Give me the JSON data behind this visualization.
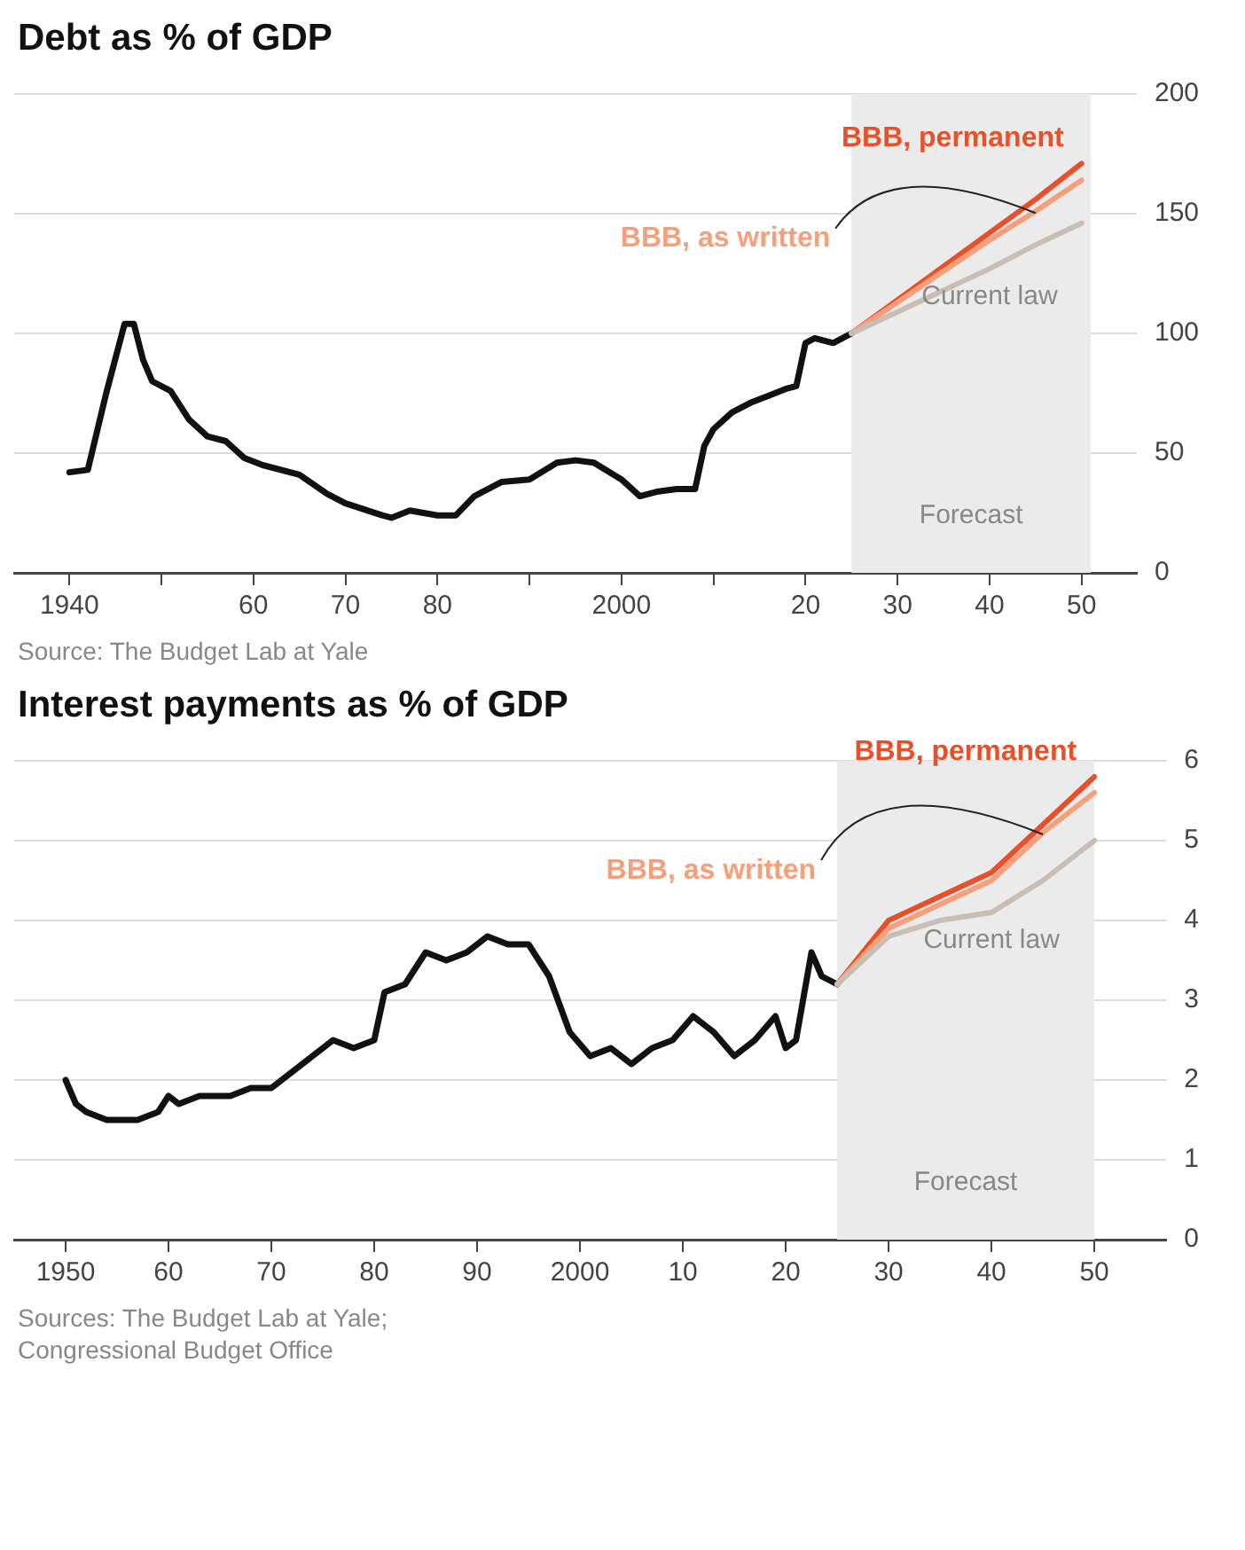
{
  "chart_data": [
    {
      "type": "line",
      "title": "Debt as % of GDP",
      "annotations": [
        "Source: The Budget Lab at Yale"
      ],
      "xlim": [
        1934,
        2056
      ],
      "xticks": [
        1940,
        {
          "value": 1950,
          "label": null
        },
        {
          "value": 1960,
          "label": "60"
        },
        {
          "value": 1970,
          "label": "70"
        },
        {
          "value": 1980,
          "label": "80"
        },
        {
          "value": 1990,
          "label": null
        },
        2000,
        {
          "value": 2010,
          "label": null
        },
        {
          "value": 2020,
          "label": "20"
        },
        {
          "value": 2030,
          "label": "30"
        },
        {
          "value": 2040,
          "label": "40"
        },
        {
          "value": 2050,
          "label": "50"
        }
      ],
      "ylim": [
        0,
        200
      ],
      "yticks": [
        0,
        50,
        100,
        150,
        200
      ],
      "grid": "y",
      "bands": [
        {
          "axis": "x",
          "from": 2025,
          "to": 2051,
          "label": "Forecast",
          "color": "#ebebeb"
        }
      ],
      "series": [
        {
          "name": "Current law",
          "color": "#c9beb3",
          "x": [
            2025,
            2030,
            2035,
            2040,
            2045,
            2050
          ],
          "values": [
            100,
            109,
            118,
            127,
            137,
            146
          ]
        },
        {
          "name": "BBB, as written",
          "color": "#f5a07a",
          "x": [
            2025,
            2030,
            2035,
            2040,
            2045,
            2050
          ],
          "values": [
            100,
            113,
            126,
            139,
            151,
            164
          ]
        },
        {
          "name": "BBB, permanent",
          "color": "#e8502a",
          "x": [
            2025,
            2030,
            2035,
            2040,
            2045,
            2050
          ],
          "values": [
            100,
            114,
            128,
            142,
            156,
            171
          ]
        },
        {
          "color": "#111111",
          "x": [
            1940,
            1942,
            1944,
            1946,
            1947,
            1948,
            1949,
            1951,
            1953,
            1955,
            1957,
            1959,
            1961,
            1965,
            1968,
            1970,
            1974,
            1975,
            1977,
            1980,
            1982,
            1984,
            1987,
            1990,
            1993,
            1995,
            1997,
            2000,
            2002,
            2004,
            2006,
            2008,
            2009,
            2010,
            2012,
            2014,
            2016,
            2018,
            2019,
            2020,
            2021,
            2023,
            2025
          ],
          "values": [
            42,
            43,
            75,
            104,
            104,
            89,
            80,
            76,
            64,
            57,
            55,
            48,
            45,
            41,
            33,
            29,
            24,
            23,
            26,
            24,
            24,
            32,
            38,
            39,
            46,
            47,
            46,
            39,
            32,
            34,
            35,
            35,
            53,
            60,
            67,
            71,
            74,
            77,
            78,
            96,
            98,
            96,
            100
          ]
        }
      ]
    },
    {
      "type": "line",
      "title": "Interest payments as % of GDP",
      "annotations": [
        "Sources: The Budget Lab at Yale; Congressional Budget Office"
      ],
      "xlim": [
        1945,
        2057
      ],
      "xticks": [
        1950,
        {
          "value": 1960,
          "label": "60"
        },
        {
          "value": 1970,
          "label": "70"
        },
        {
          "value": 1980,
          "label": "80"
        },
        {
          "value": 1990,
          "label": "90"
        },
        2000,
        {
          "value": 2010,
          "label": "10"
        },
        {
          "value": 2020,
          "label": "20"
        },
        {
          "value": 2030,
          "label": "30"
        },
        {
          "value": 2040,
          "label": "40"
        },
        {
          "value": 2050,
          "label": "50"
        }
      ],
      "ylim": [
        0,
        6
      ],
      "yticks": [
        0,
        1,
        2,
        3,
        4,
        5,
        6
      ],
      "grid": "y",
      "bands": [
        {
          "axis": "x",
          "from": 2025,
          "to": 2050,
          "label": "Forecast",
          "color": "#ebebeb"
        }
      ],
      "series": [
        {
          "name": "Current law",
          "color": "#c9beb3",
          "x": [
            2025,
            2030,
            2035,
            2040,
            2045,
            2050
          ],
          "values": [
            3.2,
            3.8,
            4.0,
            4.1,
            4.5,
            5.0
          ]
        },
        {
          "name": "BBB, as written",
          "color": "#f5a07a",
          "x": [
            2025,
            2030,
            2035,
            2040,
            2045,
            2050
          ],
          "values": [
            3.2,
            3.9,
            4.2,
            4.5,
            5.1,
            5.6
          ]
        },
        {
          "name": "BBB, permanent",
          "color": "#e8502a",
          "x": [
            2025,
            2030,
            2035,
            2040,
            2045,
            2050
          ],
          "values": [
            3.2,
            4.0,
            4.3,
            4.6,
            5.2,
            5.8
          ]
        },
        {
          "color": "#111111",
          "x": [
            1950,
            1951,
            1952,
            1954,
            1957,
            1959,
            1960,
            1961,
            1963,
            1966,
            1968,
            1970,
            1972,
            1974,
            1976,
            1978,
            1980,
            1981,
            1983,
            1985,
            1987,
            1989,
            1991,
            1993,
            1995,
            1997,
            1999,
            2001,
            2003,
            2005,
            2007,
            2009,
            2011,
            2013,
            2015,
            2017,
            2019,
            2020,
            2021,
            2022.5,
            2023.5,
            2025
          ],
          "values": [
            2.0,
            1.7,
            1.6,
            1.5,
            1.5,
            1.6,
            1.8,
            1.7,
            1.8,
            1.8,
            1.9,
            1.9,
            2.1,
            2.3,
            2.5,
            2.4,
            2.5,
            3.1,
            3.2,
            3.6,
            3.5,
            3.6,
            3.8,
            3.7,
            3.7,
            3.3,
            2.6,
            2.3,
            2.4,
            2.2,
            2.4,
            2.5,
            2.8,
            2.6,
            2.3,
            2.5,
            2.8,
            2.4,
            2.5,
            3.6,
            3.3,
            3.2
          ]
        }
      ]
    }
  ]
}
